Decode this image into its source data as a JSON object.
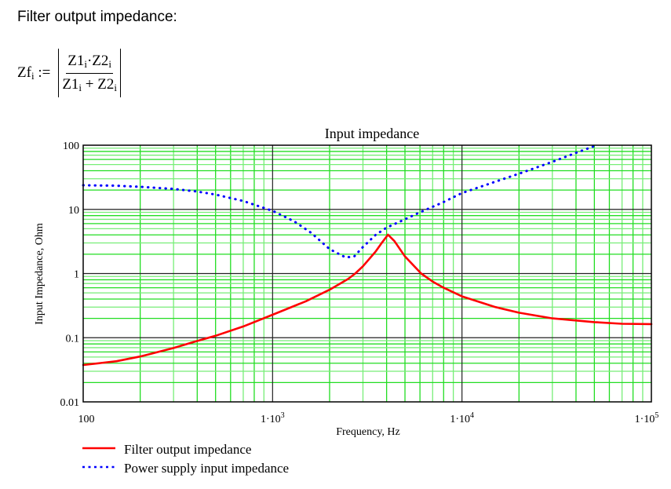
{
  "heading": "Filter output impedance:",
  "formula": {
    "lhs": "Zf",
    "lhs_sub": "i",
    "assign": ":=",
    "numerator": [
      {
        "t": "Z1",
        "s": "i"
      },
      {
        "t": "·Z2",
        "s": "i"
      }
    ],
    "denominator": [
      {
        "t": "Z1",
        "s": "i"
      },
      {
        "t": " + Z2",
        "s": "i"
      }
    ]
  },
  "chart_data": {
    "type": "line",
    "title": "Input impedance",
    "xlabel": "Frequency, Hz",
    "ylabel": "Input Impedance, Ohm",
    "xscale": "log",
    "yscale": "log",
    "xlim": [
      100,
      100000
    ],
    "ylim": [
      0.01,
      100
    ],
    "x_ticks": [
      100,
      1000,
      10000,
      100000
    ],
    "x_tick_labels": [
      "100",
      "1·10^3",
      "1·10^4",
      "1·10^5"
    ],
    "y_ticks": [
      0.01,
      0.1,
      1,
      10,
      100
    ],
    "y_tick_labels": [
      "0.01",
      "0.1",
      "1",
      "10",
      "100"
    ],
    "grid": true,
    "grid_color": "#00dd00",
    "legend_position": "below",
    "series": [
      {
        "name": "Filter output impedance",
        "color": "#ff0000",
        "style": "solid",
        "points": [
          [
            100,
            0.0376
          ],
          [
            150,
            0.043
          ],
          [
            200,
            0.051
          ],
          [
            300,
            0.069
          ],
          [
            400,
            0.089
          ],
          [
            500,
            0.107
          ],
          [
            700,
            0.15
          ],
          [
            1000,
            0.228
          ],
          [
            1500,
            0.37
          ],
          [
            2000,
            0.56
          ],
          [
            2500,
            0.82
          ],
          [
            2730,
            1.0
          ],
          [
            3000,
            1.3
          ],
          [
            3500,
            2.2
          ],
          [
            3800,
            3.1
          ],
          [
            4070,
            4.03
          ],
          [
            4400,
            3.2
          ],
          [
            5000,
            1.85
          ],
          [
            6090,
            1.0
          ],
          [
            7000,
            0.75
          ],
          [
            8000,
            0.6
          ],
          [
            10000,
            0.44
          ],
          [
            15000,
            0.3
          ],
          [
            20000,
            0.245
          ],
          [
            30000,
            0.2
          ],
          [
            50000,
            0.175
          ],
          [
            70000,
            0.165
          ],
          [
            100000,
            0.163
          ]
        ]
      },
      {
        "name": "Power supply input impedance",
        "color": "#0000ff",
        "style": "dotted",
        "points": [
          [
            100,
            23.8
          ],
          [
            150,
            23.4
          ],
          [
            200,
            22.5
          ],
          [
            300,
            20.8
          ],
          [
            400,
            19.0
          ],
          [
            500,
            17.0
          ],
          [
            700,
            13.5
          ],
          [
            1000,
            9.5
          ],
          [
            1300,
            6.5
          ],
          [
            1600,
            4.3
          ],
          [
            2000,
            2.4
          ],
          [
            2430,
            1.78
          ],
          [
            2700,
            1.85
          ],
          [
            3000,
            2.6
          ],
          [
            3500,
            4.0
          ],
          [
            4000,
            5.2
          ],
          [
            5000,
            7.0
          ],
          [
            6000,
            9.0
          ],
          [
            8000,
            13.0
          ],
          [
            10000,
            18.0
          ],
          [
            15000,
            27.0
          ],
          [
            20000,
            36.0
          ],
          [
            30000,
            55.0
          ],
          [
            40000,
            76.0
          ],
          [
            51500,
            100.0
          ]
        ]
      }
    ]
  }
}
